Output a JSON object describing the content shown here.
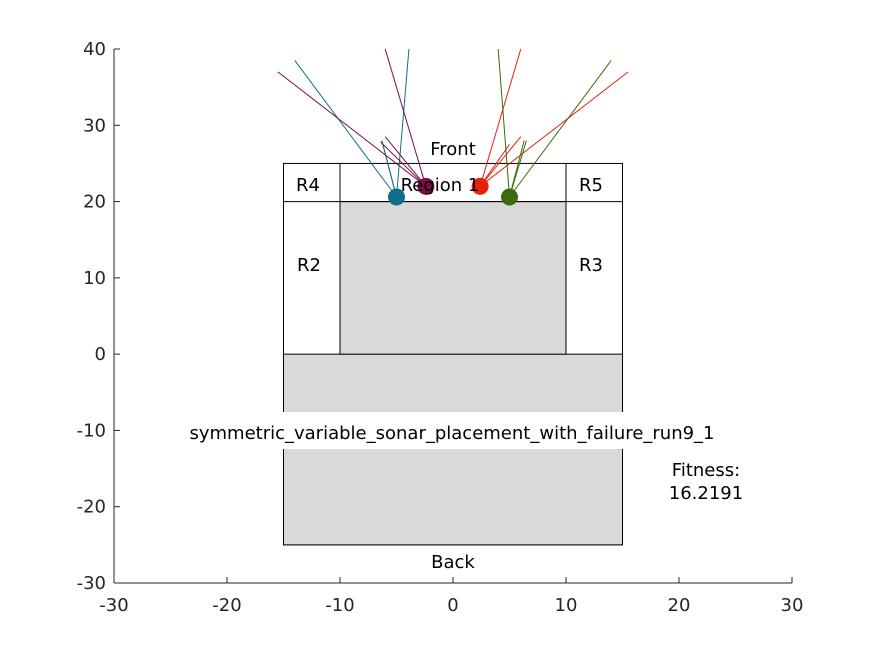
{
  "chart_data": {
    "type": "scatter",
    "title": "symmetric_variable_sonar_placement_with_failure_run9_1",
    "xlim": [
      -30,
      30
    ],
    "ylim": [
      -30,
      40
    ],
    "xticks": [
      "-30",
      "-20",
      "-10",
      "0",
      "10",
      "20",
      "30"
    ],
    "yticks": [
      "-30",
      "-20",
      "-10",
      "0",
      "10",
      "20",
      "30",
      "40"
    ],
    "grid": false,
    "fitness_label": "Fitness:",
    "fitness_value": "16.2191",
    "labels": {
      "front": "Front",
      "back": "Back",
      "region1": "Region 1",
      "r2": "R2",
      "r3": "R3",
      "r4": "R4",
      "r5": "R5"
    },
    "regions": [
      {
        "id": "body-outline",
        "x": [
          -15,
          15
        ],
        "y": [
          -25,
          25
        ],
        "fill": "#ffffff"
      },
      {
        "id": "rear-block",
        "x": [
          -15,
          15
        ],
        "y": [
          -25,
          0
        ],
        "fill": "#d9d9d9"
      },
      {
        "id": "center-block",
        "x": [
          -10,
          10
        ],
        "y": [
          0,
          20
        ],
        "fill": "#d9d9d9"
      }
    ],
    "sensors": [
      {
        "name": "S1",
        "color": "#0e6e8c",
        "pos": [
          -5,
          20.6
        ],
        "rays": [
          [
            -14,
            38.5
          ],
          [
            -3.9,
            40
          ],
          [
            -6.3,
            28
          ],
          [
            -6.3,
            28
          ]
        ]
      },
      {
        "name": "S2",
        "color": "#7a0f45",
        "pos": [
          -2.4,
          22
        ],
        "rays": [
          [
            -15.5,
            37
          ],
          [
            -6,
            40
          ],
          [
            -6,
            28.5
          ],
          [
            -6.4,
            27.8
          ]
        ]
      },
      {
        "name": "S3",
        "color": "#e8200a",
        "pos": [
          2.4,
          22
        ],
        "rays": [
          [
            15.5,
            37
          ],
          [
            6,
            40
          ],
          [
            6,
            28.5
          ],
          [
            5,
            27.5
          ]
        ]
      },
      {
        "name": "S4",
        "color": "#3d6b0a",
        "pos": [
          5,
          20.6
        ],
        "rays": [
          [
            14,
            38.5
          ],
          [
            4,
            40
          ],
          [
            6.5,
            28
          ],
          [
            6.3,
            28
          ]
        ]
      }
    ],
    "colors": {
      "axis": "#262626",
      "fill": "#d9d9d9"
    }
  }
}
